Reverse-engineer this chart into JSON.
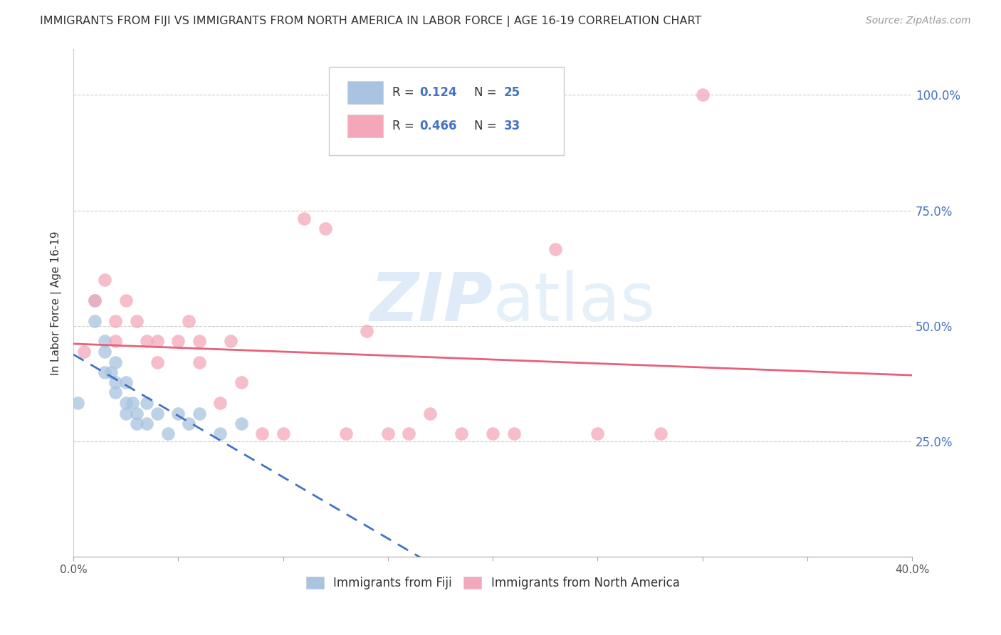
{
  "title": "IMMIGRANTS FROM FIJI VS IMMIGRANTS FROM NORTH AMERICA IN LABOR FORCE | AGE 16-19 CORRELATION CHART",
  "source": "Source: ZipAtlas.com",
  "ylabel": "In Labor Force | Age 16-19",
  "watermark": "ZIPatlas",
  "fiji_R": 0.124,
  "fiji_N": 25,
  "na_R": 0.466,
  "na_N": 33,
  "fiji_color": "#a8c4e0",
  "na_color": "#f4a7b9",
  "fiji_line_color": "#4472c4",
  "na_line_color": "#e8607a",
  "fiji_scatter_x": [
    0.2,
    1.0,
    1.0,
    1.5,
    1.5,
    1.5,
    1.8,
    2.0,
    2.0,
    2.0,
    2.5,
    2.5,
    2.5,
    2.8,
    3.0,
    3.0,
    3.5,
    3.5,
    4.0,
    4.5,
    5.0,
    5.5,
    6.0,
    7.0,
    8.0
  ],
  "fiji_scatter_y": [
    0.333,
    0.556,
    0.511,
    0.444,
    0.4,
    0.467,
    0.4,
    0.422,
    0.378,
    0.356,
    0.378,
    0.333,
    0.311,
    0.333,
    0.311,
    0.289,
    0.333,
    0.289,
    0.311,
    0.267,
    0.311,
    0.289,
    0.311,
    0.267,
    0.289
  ],
  "na_scatter_x": [
    0.5,
    1.0,
    1.5,
    2.0,
    2.0,
    2.5,
    3.0,
    3.5,
    4.0,
    4.0,
    5.0,
    5.5,
    6.0,
    6.0,
    7.0,
    7.5,
    8.0,
    9.0,
    10.0,
    11.0,
    12.0,
    13.0,
    14.0,
    15.0,
    16.0,
    17.0,
    18.5,
    20.0,
    21.0,
    23.0,
    25.0,
    28.0,
    30.0
  ],
  "na_scatter_y": [
    0.444,
    0.556,
    0.6,
    0.511,
    0.467,
    0.556,
    0.511,
    0.467,
    0.467,
    0.422,
    0.467,
    0.511,
    0.467,
    0.422,
    0.333,
    0.467,
    0.378,
    0.267,
    0.267,
    0.733,
    0.711,
    0.267,
    0.489,
    0.267,
    0.267,
    0.311,
    0.267,
    0.267,
    0.267,
    0.667,
    0.267,
    0.267,
    1.0
  ],
  "xlim": [
    0,
    40
  ],
  "ylim": [
    0.0,
    1.1
  ],
  "background_color": "#ffffff",
  "grid_color": "#cccccc"
}
